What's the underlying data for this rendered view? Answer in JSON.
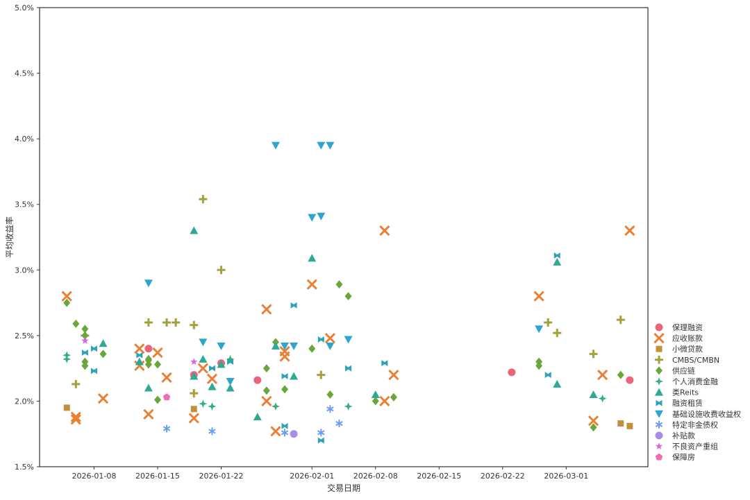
{
  "chart_data": {
    "type": "scatter",
    "title": "",
    "xlabel": "交易日期",
    "ylabel": "平均收益率",
    "x_type": "date",
    "xlim": [
      "2026-01-02",
      "2026-03-10"
    ],
    "ylim": [
      1.5,
      5.0
    ],
    "y_unit": "%",
    "x_ticks": [
      "2026-01-08",
      "2026-01-15",
      "2026-01-22",
      "2026-02-01",
      "2026-02-08",
      "2026-02-15",
      "2026-02-22",
      "2026-03-01"
    ],
    "y_ticks": [
      1.5,
      2.0,
      2.5,
      3.0,
      3.5,
      4.0,
      4.5,
      5.0
    ],
    "y_tick_labels": [
      "1.5%",
      "2.0%",
      "2.5%",
      "3.0%",
      "3.5%",
      "4.0%",
      "4.5%",
      "5.0%"
    ],
    "grid": false,
    "legend_position": "right",
    "series": [
      {
        "name": "保理融资",
        "marker": "circle",
        "color": "#e8657a",
        "points": [
          [
            "2026-01-14",
            2.4
          ],
          [
            "2026-01-19",
            2.2
          ],
          [
            "2026-01-22",
            2.29
          ],
          [
            "2026-01-26",
            2.16
          ],
          [
            "2026-02-23",
            2.22
          ],
          [
            "2026-03-08",
            2.16
          ]
        ]
      },
      {
        "name": "应收账款",
        "marker": "x",
        "color": "#e88035",
        "points": [
          [
            "2026-01-05",
            2.8
          ],
          [
            "2026-01-06",
            1.88
          ],
          [
            "2026-01-06",
            1.86
          ],
          [
            "2026-01-09",
            2.02
          ],
          [
            "2026-01-13",
            2.4
          ],
          [
            "2026-01-13",
            2.27
          ],
          [
            "2026-01-14",
            1.9
          ],
          [
            "2026-01-15",
            2.37
          ],
          [
            "2026-01-16",
            2.18
          ],
          [
            "2026-01-19",
            1.87
          ],
          [
            "2026-01-20",
            2.25
          ],
          [
            "2026-01-21",
            2.17
          ],
          [
            "2026-01-27",
            2.7
          ],
          [
            "2026-01-27",
            2.0
          ],
          [
            "2026-01-28",
            1.77
          ],
          [
            "2026-01-29",
            2.38
          ],
          [
            "2026-01-29",
            2.34
          ],
          [
            "2026-02-01",
            2.89
          ],
          [
            "2026-02-03",
            2.48
          ],
          [
            "2026-02-09",
            3.3
          ],
          [
            "2026-02-09",
            2.0
          ],
          [
            "2026-02-10",
            2.2
          ],
          [
            "2026-02-26",
            2.8
          ],
          [
            "2026-03-04",
            1.85
          ],
          [
            "2026-03-05",
            2.2
          ],
          [
            "2026-03-08",
            3.3
          ]
        ]
      },
      {
        "name": "小微贷款",
        "marker": "square",
        "color": "#c0913a",
        "points": [
          [
            "2026-01-05",
            1.95
          ],
          [
            "2026-01-19",
            1.94
          ],
          [
            "2026-03-07",
            1.83
          ],
          [
            "2026-03-08",
            1.81
          ]
        ]
      },
      {
        "name": "CMBS/CMBN",
        "marker": "plus",
        "color": "#a4a03c",
        "points": [
          [
            "2026-01-06",
            2.13
          ],
          [
            "2026-01-07",
            2.5
          ],
          [
            "2026-01-14",
            2.6
          ],
          [
            "2026-01-16",
            2.6
          ],
          [
            "2026-01-17",
            2.6
          ],
          [
            "2026-01-19",
            2.58
          ],
          [
            "2026-01-19",
            2.06
          ],
          [
            "2026-01-20",
            3.54
          ],
          [
            "2026-01-22",
            3.0
          ],
          [
            "2026-02-02",
            2.2
          ],
          [
            "2026-02-27",
            2.6
          ],
          [
            "2026-02-28",
            2.52
          ],
          [
            "2026-03-04",
            2.36
          ],
          [
            "2026-03-07",
            2.62
          ]
        ]
      },
      {
        "name": "供应链",
        "marker": "diamond",
        "color": "#6aa63a",
        "points": [
          [
            "2026-01-05",
            2.75
          ],
          [
            "2026-01-06",
            2.59
          ],
          [
            "2026-01-07",
            2.55
          ],
          [
            "2026-01-07",
            2.5
          ],
          [
            "2026-01-07",
            2.3
          ],
          [
            "2026-01-07",
            2.27
          ],
          [
            "2026-01-09",
            2.36
          ],
          [
            "2026-01-14",
            2.32
          ],
          [
            "2026-01-14",
            2.31
          ],
          [
            "2026-01-14",
            2.28
          ],
          [
            "2026-01-14",
            2.28
          ],
          [
            "2026-01-15",
            2.28
          ],
          [
            "2026-01-15",
            2.01
          ],
          [
            "2026-01-27",
            2.25
          ],
          [
            "2026-01-27",
            2.08
          ],
          [
            "2026-01-28",
            2.45
          ],
          [
            "2026-01-29",
            2.09
          ],
          [
            "2026-02-01",
            2.4
          ],
          [
            "2026-02-03",
            2.05
          ],
          [
            "2026-02-04",
            2.89
          ],
          [
            "2026-02-05",
            2.8
          ],
          [
            "2026-02-08",
            2.0
          ],
          [
            "2026-02-10",
            2.03
          ],
          [
            "2026-02-26",
            2.3
          ],
          [
            "2026-02-26",
            2.27
          ],
          [
            "2026-03-04",
            1.8
          ],
          [
            "2026-03-07",
            2.2
          ]
        ]
      },
      {
        "name": "个人消费金融",
        "marker": "star4",
        "color": "#33b07a",
        "points": [
          [
            "2026-01-05",
            2.35
          ],
          [
            "2026-01-05",
            2.32
          ],
          [
            "2026-01-20",
            1.98
          ],
          [
            "2026-01-21",
            1.96
          ],
          [
            "2026-01-23",
            2.32
          ],
          [
            "2026-01-28",
            1.96
          ],
          [
            "2026-02-05",
            1.96
          ],
          [
            "2026-03-05",
            2.02
          ]
        ]
      },
      {
        "name": "类Reits",
        "marker": "triangle-up",
        "color": "#2fa896",
        "points": [
          [
            "2026-01-09",
            2.44
          ],
          [
            "2026-01-13",
            2.3
          ],
          [
            "2026-01-14",
            2.1
          ],
          [
            "2026-01-19",
            3.3
          ],
          [
            "2026-01-19",
            2.19
          ],
          [
            "2026-01-20",
            2.32
          ],
          [
            "2026-01-21",
            2.11
          ],
          [
            "2026-01-22",
            2.28
          ],
          [
            "2026-01-23",
            2.1
          ],
          [
            "2026-01-26",
            1.88
          ],
          [
            "2026-01-28",
            2.42
          ],
          [
            "2026-01-30",
            2.19
          ],
          [
            "2026-02-01",
            3.09
          ],
          [
            "2026-02-08",
            2.05
          ],
          [
            "2026-02-28",
            3.06
          ],
          [
            "2026-02-28",
            2.13
          ],
          [
            "2026-03-04",
            2.05
          ]
        ]
      },
      {
        "name": "融资租赁",
        "marker": "bowtie",
        "color": "#2fa3b4",
        "points": [
          [
            "2026-01-07",
            2.37
          ],
          [
            "2026-01-08",
            2.4
          ],
          [
            "2026-01-08",
            2.23
          ],
          [
            "2026-01-13",
            2.35
          ],
          [
            "2026-01-21",
            2.25
          ],
          [
            "2026-01-23",
            2.3
          ],
          [
            "2026-01-29",
            2.19
          ],
          [
            "2026-01-29",
            1.81
          ],
          [
            "2026-01-30",
            2.73
          ],
          [
            "2026-02-02",
            2.47
          ],
          [
            "2026-02-02",
            1.7
          ],
          [
            "2026-02-05",
            2.25
          ],
          [
            "2026-02-09",
            2.29
          ],
          [
            "2026-02-27",
            2.2
          ],
          [
            "2026-02-28",
            3.11
          ]
        ]
      },
      {
        "name": "基础设施收费收益权",
        "marker": "triangle-down",
        "color": "#2fa5cc",
        "points": [
          [
            "2026-01-14",
            2.9
          ],
          [
            "2026-01-20",
            2.45
          ],
          [
            "2026-01-22",
            2.42
          ],
          [
            "2026-01-23",
            2.15
          ],
          [
            "2026-01-28",
            3.95
          ],
          [
            "2026-01-29",
            2.42
          ],
          [
            "2026-01-30",
            2.42
          ],
          [
            "2026-02-01",
            3.4
          ],
          [
            "2026-02-02",
            3.95
          ],
          [
            "2026-02-02",
            3.41
          ],
          [
            "2026-02-03",
            3.95
          ],
          [
            "2026-02-03",
            2.42
          ],
          [
            "2026-02-05",
            2.47
          ],
          [
            "2026-02-26",
            2.55
          ]
        ]
      },
      {
        "name": "特定非金债权",
        "marker": "asterisk",
        "color": "#6f9bf0",
        "points": [
          [
            "2026-01-16",
            1.79
          ],
          [
            "2026-01-21",
            1.77
          ],
          [
            "2026-01-29",
            1.76
          ],
          [
            "2026-02-02",
            1.76
          ],
          [
            "2026-02-03",
            1.94
          ],
          [
            "2026-02-04",
            1.83
          ]
        ]
      },
      {
        "name": "补贴款",
        "marker": "circle",
        "color": "#a98ee8",
        "points": [
          [
            "2026-01-30",
            1.75
          ]
        ]
      },
      {
        "name": "不良资产重组",
        "marker": "star",
        "color": "#e263e0",
        "points": [
          [
            "2026-01-07",
            2.46
          ],
          [
            "2026-01-19",
            2.3
          ]
        ]
      },
      {
        "name": "保障房",
        "marker": "pentagon",
        "color": "#ee6cb0",
        "points": [
          [
            "2026-01-16",
            2.03
          ]
        ]
      }
    ]
  }
}
